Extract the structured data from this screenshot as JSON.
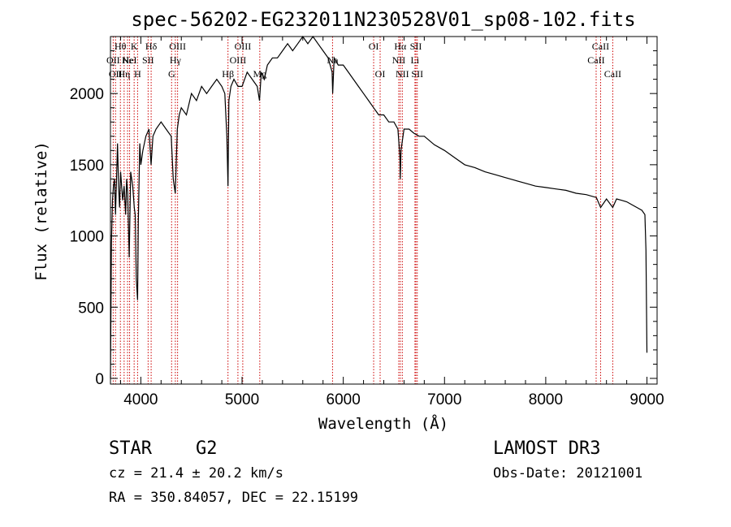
{
  "chart_data": {
    "type": "line",
    "title": "spec-56202-EG232011N230528V01_sp08-102.fits",
    "xlabel": "Wavelength (Å)",
    "ylabel": "Flux (relative)",
    "xlim": [
      3700,
      9100
    ],
    "ylim": [
      -40,
      2400
    ],
    "xticks": [
      4000,
      5000,
      6000,
      7000,
      8000,
      9000
    ],
    "yticks": [
      0,
      500,
      1000,
      1500,
      2000
    ],
    "series": [
      {
        "name": "spectrum",
        "x": [
          3700,
          3710,
          3720,
          3730,
          3740,
          3750,
          3760,
          3770,
          3780,
          3790,
          3800,
          3820,
          3835,
          3850,
          3860,
          3870,
          3885,
          3900,
          3920,
          3935,
          3945,
          3955,
          3968,
          3975,
          3990,
          4000,
          4020,
          4050,
          4080,
          4101,
          4120,
          4150,
          4200,
          4250,
          4300,
          4320,
          4340,
          4360,
          4380,
          4400,
          4450,
          4500,
          4550,
          4600,
          4650,
          4700,
          4750,
          4800,
          4830,
          4850,
          4861,
          4870,
          4890,
          4920,
          4960,
          5000,
          5050,
          5100,
          5150,
          5172,
          5190,
          5220,
          5250,
          5300,
          5350,
          5400,
          5450,
          5500,
          5550,
          5600,
          5650,
          5700,
          5750,
          5800,
          5850,
          5890,
          5895,
          5910,
          5950,
          6000,
          6050,
          6100,
          6150,
          6200,
          6250,
          6300,
          6350,
          6400,
          6450,
          6500,
          6540,
          6560,
          6563,
          6570,
          6600,
          6650,
          6700,
          6750,
          6800,
          6900,
          7000,
          7100,
          7200,
          7300,
          7400,
          7500,
          7600,
          7700,
          7800,
          7900,
          8000,
          8100,
          8200,
          8300,
          8400,
          8500,
          8542,
          8600,
          8662,
          8700,
          8750,
          8800,
          8850,
          8900,
          8950,
          8980,
          8990,
          9000
        ],
        "y": [
          0,
          950,
          1250,
          1350,
          1400,
          1150,
          1400,
          1650,
          1350,
          1200,
          1450,
          1250,
          1350,
          1150,
          1400,
          1300,
          850,
          1450,
          1350,
          1200,
          1150,
          700,
          550,
          1100,
          1650,
          1500,
          1600,
          1700,
          1750,
          1500,
          1700,
          1750,
          1800,
          1750,
          1700,
          1400,
          1300,
          1750,
          1850,
          1900,
          1850,
          2000,
          1950,
          2050,
          2000,
          2050,
          2100,
          2050,
          2000,
          1700,
          1350,
          1950,
          2050,
          2100,
          2050,
          2050,
          2150,
          2100,
          2050,
          1950,
          2150,
          2100,
          2200,
          2250,
          2250,
          2300,
          2350,
          2300,
          2350,
          2400,
          2350,
          2400,
          2350,
          2300,
          2250,
          2150,
          2000,
          2250,
          2200,
          2200,
          2150,
          2100,
          2050,
          2000,
          1950,
          1900,
          1850,
          1850,
          1800,
          1800,
          1750,
          1550,
          1400,
          1600,
          1750,
          1750,
          1720,
          1700,
          1700,
          1640,
          1600,
          1550,
          1500,
          1480,
          1450,
          1430,
          1410,
          1390,
          1370,
          1350,
          1340,
          1330,
          1320,
          1300,
          1290,
          1270,
          1200,
          1260,
          1200,
          1260,
          1250,
          1240,
          1220,
          1200,
          1180,
          1150,
          900,
          180
        ]
      }
    ],
    "emission_lines": [
      {
        "wavelength": 3727,
        "labels": [
          "OII"
        ],
        "row": [
          2
        ]
      },
      {
        "wavelength": 3750,
        "labels": [
          "OII"
        ],
        "row": [
          3
        ]
      },
      {
        "wavelength": 3798,
        "labels": [
          "Hθ"
        ],
        "row": [
          1
        ]
      },
      {
        "wavelength": 3835,
        "labels": [
          "Hη"
        ],
        "row": [
          3
        ]
      },
      {
        "wavelength": 3869,
        "labels": [
          "Ne"
        ],
        "row": [
          2
        ]
      },
      {
        "wavelength": 3889,
        "labels": [
          "HeI"
        ],
        "row": [
          2
        ]
      },
      {
        "wavelength": 3934,
        "labels": [
          "K"
        ],
        "row": [
          1
        ]
      },
      {
        "wavelength": 3968,
        "labels": [
          "H"
        ],
        "row": [
          3
        ]
      },
      {
        "wavelength": 4072,
        "labels": [
          "SII"
        ],
        "row": [
          2
        ]
      },
      {
        "wavelength": 4102,
        "labels": [
          "Hδ"
        ],
        "row": [
          1
        ]
      },
      {
        "wavelength": 4304,
        "labels": [
          "G"
        ],
        "row": [
          3
        ]
      },
      {
        "wavelength": 4341,
        "labels": [
          "Hγ"
        ],
        "row": [
          2
        ]
      },
      {
        "wavelength": 4363,
        "labels": [
          "OIII"
        ],
        "row": [
          1
        ]
      },
      {
        "wavelength": 4861,
        "labels": [
          "Hβ"
        ],
        "row": [
          3
        ]
      },
      {
        "wavelength": 4959,
        "labels": [
          "OIII"
        ],
        "row": [
          2
        ]
      },
      {
        "wavelength": 5007,
        "labels": [
          "OIII"
        ],
        "row": [
          1
        ]
      },
      {
        "wavelength": 5175,
        "labels": [
          "Mg"
        ],
        "row": [
          3
        ]
      },
      {
        "wavelength": 5894,
        "labels": [
          "Na"
        ],
        "row": [
          2
        ]
      },
      {
        "wavelength": 6300,
        "labels": [
          "OI"
        ],
        "row": [
          1
        ]
      },
      {
        "wavelength": 6364,
        "labels": [
          "OI"
        ],
        "row": [
          3
        ]
      },
      {
        "wavelength": 6548,
        "labels": [
          "NII"
        ],
        "row": [
          2
        ]
      },
      {
        "wavelength": 6563,
        "labels": [
          "Hα"
        ],
        "row": [
          1
        ]
      },
      {
        "wavelength": 6583,
        "labels": [
          "NII"
        ],
        "row": [
          3
        ]
      },
      {
        "wavelength": 6708,
        "labels": [
          "Li"
        ],
        "row": [
          2
        ]
      },
      {
        "wavelength": 6717,
        "labels": [
          "SII"
        ],
        "row": [
          1
        ]
      },
      {
        "wavelength": 6731,
        "labels": [
          "SII"
        ],
        "row": [
          3
        ]
      },
      {
        "wavelength": 8498,
        "labels": [
          "CaII"
        ],
        "row": [
          2
        ]
      },
      {
        "wavelength": 8542,
        "labels": [
          "CaII"
        ],
        "row": [
          1
        ]
      },
      {
        "wavelength": 8662,
        "labels": [
          "CaII"
        ],
        "row": [
          3
        ]
      }
    ],
    "grid": false,
    "legend": "none",
    "colors": {
      "line": "#000000",
      "marker": "#cc0000",
      "axis": "#000000",
      "background": "#ffffff"
    }
  },
  "info": {
    "object_class": "STAR",
    "subclass": "G2",
    "cz": "cz = 21.4 ± 20.2 km/s",
    "coords": "RA = 350.84057, DEC =  22.15199",
    "survey": "LAMOST DR3",
    "obs_date": "Obs-Date: 20121001"
  }
}
